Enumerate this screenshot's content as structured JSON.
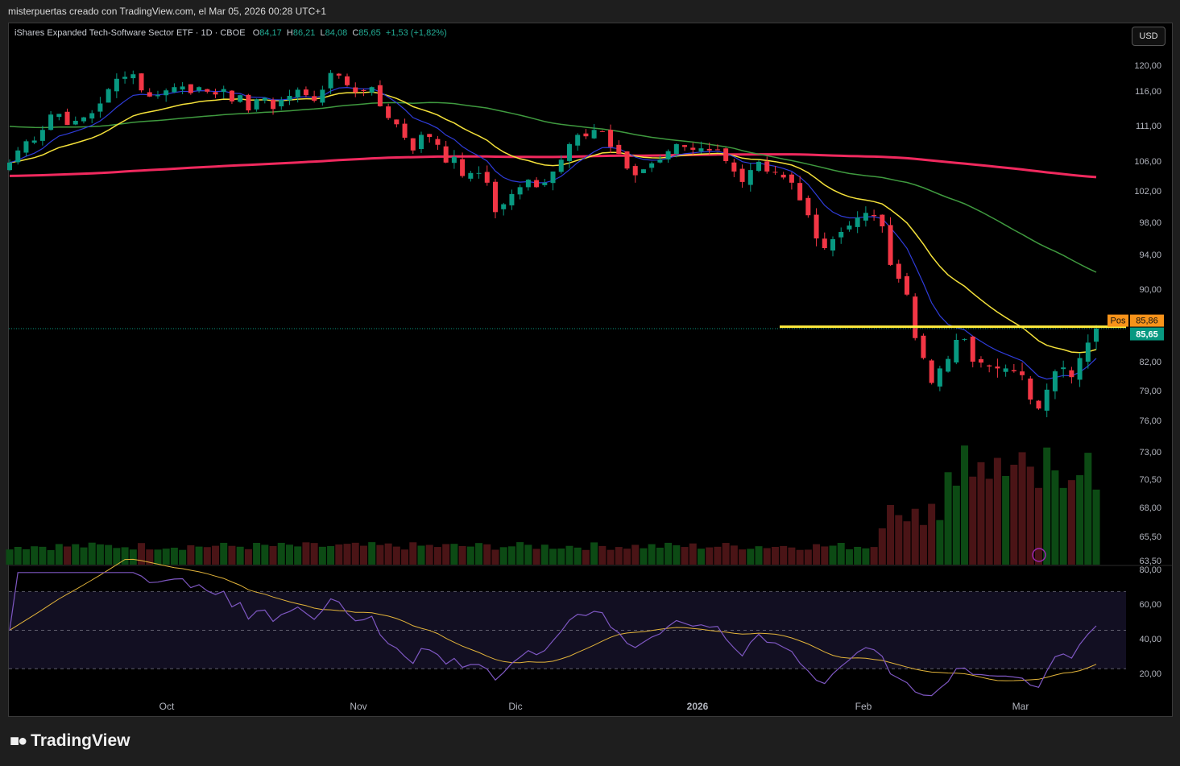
{
  "credit": "misterpuertas creado con TradingView.com, el Mar 05, 2026 00:28 UTC+1",
  "header": {
    "name": "iShares Expanded Tech-Software Sector ETF · 1D · CBOE",
    "o_label": "O",
    "o": "84,17",
    "h_label": "H",
    "h": "86,21",
    "l_label": "L",
    "l": "84,08",
    "c_label": "C",
    "c": "85,65",
    "change": "+1,53 (+1,82%)"
  },
  "currency_button": "USD",
  "brand": "TradingView",
  "colors": {
    "up": "#089981",
    "down": "#f23645",
    "ema_blue": "#2f3cd9",
    "ema_yellow": "#f4e13a",
    "sma_green": "#3f9a3f",
    "sma_red": "#f0295e",
    "pos_line": "#ffeb3b",
    "rsi_line": "#7e57c2",
    "rsi_ma": "#e2b33a"
  },
  "chart_data": [
    {
      "type": "candlestick",
      "price_axis_labels": [
        "120,00",
        "116,00",
        "111,00",
        "106,00",
        "102,00",
        "98,00",
        "94,00",
        "90,00",
        "82,00",
        "79,00",
        "76,00",
        "73,00",
        "70,50",
        "68,00",
        "65,50",
        "63,50"
      ],
      "x_axis_labels": [
        "Oct",
        "Nov",
        "Dic",
        "2026",
        "Feb",
        "Mar"
      ],
      "position_label": "Pos",
      "position_price": "85,86",
      "last_price_label": "85,65",
      "last_price": 85.65,
      "position_value": 85.86,
      "closes": [
        105.8,
        107.5,
        108.8,
        108.9,
        110.4,
        112.6,
        112.7,
        111.1,
        111.7,
        112.2,
        112.8,
        114.2,
        116.3,
        117.9,
        118.2,
        118.6,
        116.1,
        115.2,
        115.4,
        116.1,
        116.6,
        116.7,
        115.7,
        116.6,
        115.9,
        115.5,
        116.3,
        114.5,
        115.4,
        113.2,
        114.8,
        115.0,
        113.4,
        114.7,
        115.3,
        116.2,
        115.4,
        114.6,
        116.2,
        118.8,
        118.4,
        116.9,
        115.8,
        116.0,
        116.6,
        113.8,
        112.1,
        111.2,
        109.3,
        107.5,
        109.7,
        109.4,
        108.3,
        105.8,
        106.6,
        104.0,
        104.4,
        104.4,
        103.1,
        99.3,
        100.3,
        101.6,
        102.5,
        103.5,
        102.5,
        103.1,
        104.6,
        106.2,
        108.4,
        109.7,
        109.5,
        110.4,
        110.2,
        108.0,
        107.0,
        105.0,
        104.1,
        104.9,
        105.7,
        106.2,
        107.4,
        108.4,
        108.0,
        107.6,
        107.8,
        107.5,
        107.6,
        106.0,
        104.6,
        103.2,
        104.8,
        105.9,
        104.6,
        104.5,
        103.8,
        103.1,
        100.8,
        98.9,
        96.0,
        94.8,
        95.9,
        96.8,
        97.6,
        98.6,
        99.2,
        98.8,
        97.5,
        92.8,
        91.2,
        89.4,
        84.6,
        82.4,
        79.8,
        81.3,
        82.3,
        84.4,
        84.5,
        82.0,
        81.9,
        81.5,
        81.3,
        81.3,
        81.0,
        80.6,
        78.1,
        77.2,
        79.1,
        81.0,
        81.4,
        80.4,
        82.4,
        84.1,
        85.65
      ],
      "volume_scale_labels_note": "volume bars relative",
      "sma_long_end": 105.4,
      "sma_mid_end": 93.5
    },
    {
      "type": "line",
      "name": "RSI",
      "y_axis_labels": [
        "80,00",
        "60,00",
        "40,00",
        "20,00"
      ],
      "ylim": [
        15,
        82
      ],
      "bands": [
        70,
        50,
        30
      ]
    }
  ]
}
